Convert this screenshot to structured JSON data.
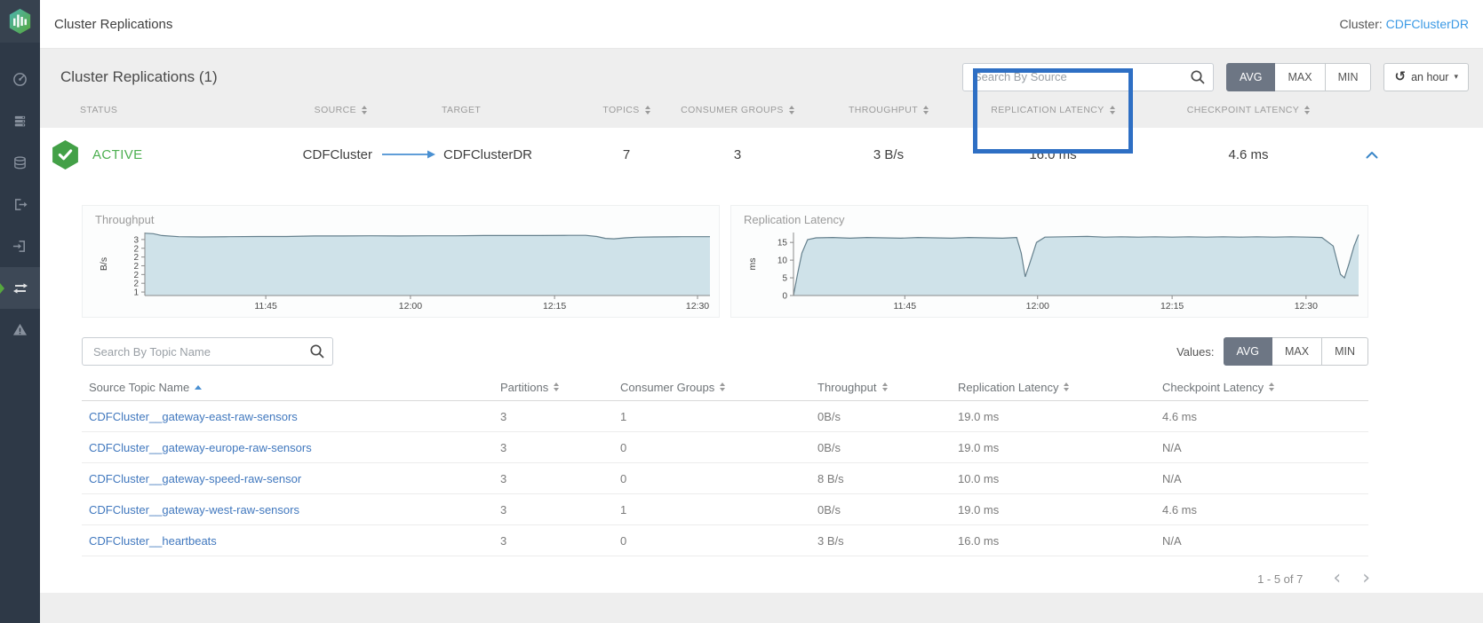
{
  "app": {
    "window_title": "Cluster Replications",
    "cluster_label": "Cluster:",
    "cluster_name": "CDFClusterDR"
  },
  "sidebar": {
    "items": [
      {
        "icon": "gauge-icon",
        "active": false
      },
      {
        "icon": "brokers-icon",
        "active": false
      },
      {
        "icon": "topics-icon",
        "active": false
      },
      {
        "icon": "producers-icon",
        "active": false
      },
      {
        "icon": "consumers-icon",
        "active": false
      },
      {
        "icon": "replications-icon",
        "active": true
      },
      {
        "icon": "alerts-icon",
        "active": false
      }
    ]
  },
  "toolbar": {
    "heading": "Cluster Replications (1)",
    "search_placeholder": "Search By Source",
    "agg_buttons": [
      "AVG",
      "MAX",
      "MIN"
    ],
    "agg_selected": "AVG",
    "time_range": "an hour"
  },
  "cluster_table": {
    "columns": [
      "STATUS",
      "SOURCE",
      "TARGET",
      "TOPICS",
      "CONSUMER GROUPS",
      "THROUGHPUT",
      "REPLICATION LATENCY",
      "CHECKPOINT LATENCY"
    ],
    "row": {
      "status": "ACTIVE",
      "source": "CDFCluster",
      "target": "CDFClusterDR",
      "topics": "7",
      "consumer_groups": "3",
      "throughput": "3 B/s",
      "replication_latency": "16.0 ms",
      "checkpoint_latency": "4.6 ms"
    },
    "highlighted_column": "REPLICATION LATENCY"
  },
  "values_toggle": {
    "label": "Values:",
    "buttons": [
      "AVG",
      "MAX",
      "MIN"
    ],
    "selected": "AVG"
  },
  "topics_table": {
    "search_placeholder": "Search By Topic Name",
    "columns": [
      "Source Topic Name",
      "Partitions",
      "Consumer Groups",
      "Throughput",
      "Replication Latency",
      "Checkpoint Latency"
    ],
    "sorted_by": "Source Topic Name",
    "sort_direction": "asc",
    "rows": [
      {
        "name": "CDFCluster__gateway-east-raw-sensors",
        "partitions": "3",
        "consumer_groups": "1",
        "throughput": "0B/s",
        "replication_latency": "19.0 ms",
        "checkpoint_latency": "4.6 ms"
      },
      {
        "name": "CDFCluster__gateway-europe-raw-sensors",
        "partitions": "3",
        "consumer_groups": "0",
        "throughput": "0B/s",
        "replication_latency": "19.0 ms",
        "checkpoint_latency": "N/A"
      },
      {
        "name": "CDFCluster__gateway-speed-raw-sensor",
        "partitions": "3",
        "consumer_groups": "0",
        "throughput": "8 B/s",
        "replication_latency": "10.0 ms",
        "checkpoint_latency": "N/A"
      },
      {
        "name": "CDFCluster__gateway-west-raw-sensors",
        "partitions": "3",
        "consumer_groups": "1",
        "throughput": "0B/s",
        "replication_latency": "19.0 ms",
        "checkpoint_latency": "4.6 ms"
      },
      {
        "name": "CDFCluster__heartbeats",
        "partitions": "3",
        "consumer_groups": "0",
        "throughput": "3 B/s",
        "replication_latency": "16.0 ms",
        "checkpoint_latency": "N/A"
      }
    ],
    "pagination": "1 - 5 of 7"
  },
  "colors": {
    "highlight_blue": "#2e6fc4",
    "status_green": "#43a047",
    "link_blue": "#4178be",
    "header_link_blue": "#3c9ae5",
    "chart_fill": "#cfe2e9",
    "chart_stroke": "#65808d",
    "sidebar_bg": "#2e3947",
    "selected_button_bg": "#6d7684"
  },
  "chart_data": [
    {
      "type": "area",
      "dom": "throughput-chart",
      "title": "Throughput",
      "ylabel": "B/s",
      "ylim": [
        0.85,
        3.55
      ],
      "yticks": [
        {
          "v": 3.25,
          "label": "3"
        },
        {
          "v": 2.875,
          "label": "2"
        },
        {
          "v": 2.5,
          "label": "2"
        },
        {
          "v": 2.125,
          "label": "2"
        },
        {
          "v": 1.75,
          "label": "2"
        },
        {
          "v": 1.375,
          "label": "2"
        },
        {
          "v": 1.0,
          "label": "1"
        }
      ],
      "xticks": [
        {
          "label": "11:45",
          "pos": 21.4
        },
        {
          "label": "12:00",
          "pos": 47.0
        },
        {
          "label": "12:15",
          "pos": 72.5
        },
        {
          "label": "12:30",
          "pos": 97.8
        }
      ],
      "fill": "#cfe2e9",
      "stroke": "#65808d",
      "points": [
        [
          0,
          3.52
        ],
        [
          1.5,
          3.5
        ],
        [
          3,
          3.42
        ],
        [
          6,
          3.37
        ],
        [
          10,
          3.36
        ],
        [
          15,
          3.37
        ],
        [
          20,
          3.38
        ],
        [
          25,
          3.38
        ],
        [
          30,
          3.4
        ],
        [
          35,
          3.4
        ],
        [
          40,
          3.41
        ],
        [
          45,
          3.4
        ],
        [
          50,
          3.41
        ],
        [
          55,
          3.41
        ],
        [
          60,
          3.42
        ],
        [
          65,
          3.42
        ],
        [
          70,
          3.42
        ],
        [
          75,
          3.43
        ],
        [
          78,
          3.43
        ],
        [
          80,
          3.38
        ],
        [
          81.5,
          3.3
        ],
        [
          83,
          3.28
        ],
        [
          85,
          3.32
        ],
        [
          87,
          3.35
        ],
        [
          90,
          3.36
        ],
        [
          95,
          3.37
        ],
        [
          100,
          3.37
        ]
      ]
    },
    {
      "type": "area",
      "dom": "latency-chart",
      "title": "Replication Latency",
      "ylabel": "ms",
      "ylim": [
        0,
        17.8
      ],
      "yticks": [
        {
          "v": 15,
          "label": "15"
        },
        {
          "v": 10,
          "label": "10"
        },
        {
          "v": 5,
          "label": "5"
        },
        {
          "v": 0,
          "label": "0"
        }
      ],
      "xticks": [
        {
          "label": "11:45",
          "pos": 19.7
        },
        {
          "label": "12:00",
          "pos": 43.2
        },
        {
          "label": "12:15",
          "pos": 67.0
        },
        {
          "label": "12:30",
          "pos": 90.7
        }
      ],
      "fill": "#cfe2e9",
      "stroke": "#65808d",
      "points": [
        [
          0,
          0
        ],
        [
          0.7,
          6
        ],
        [
          1.5,
          12
        ],
        [
          2.5,
          15.8
        ],
        [
          4,
          16.3
        ],
        [
          7,
          16.4
        ],
        [
          10,
          16.2
        ],
        [
          13,
          16.4
        ],
        [
          16,
          16.3
        ],
        [
          19,
          16.2
        ],
        [
          22,
          16.4
        ],
        [
          25,
          16.3
        ],
        [
          28,
          16.2
        ],
        [
          31,
          16.4
        ],
        [
          34,
          16.3
        ],
        [
          37,
          16.2
        ],
        [
          39.5,
          16.4
        ],
        [
          40.3,
          12
        ],
        [
          41,
          5.3
        ],
        [
          41.8,
          9
        ],
        [
          43,
          15
        ],
        [
          44.5,
          16.5
        ],
        [
          48,
          16.6
        ],
        [
          52,
          16.7
        ],
        [
          55,
          16.5
        ],
        [
          58,
          16.6
        ],
        [
          61,
          16.5
        ],
        [
          64,
          16.6
        ],
        [
          67,
          16.5
        ],
        [
          70,
          16.6
        ],
        [
          73,
          16.5
        ],
        [
          76,
          16.6
        ],
        [
          79,
          16.5
        ],
        [
          82,
          16.6
        ],
        [
          85,
          16.5
        ],
        [
          88,
          16.6
        ],
        [
          91,
          16.5
        ],
        [
          93.5,
          16.4
        ],
        [
          95.5,
          14
        ],
        [
          96.8,
          6
        ],
        [
          97.5,
          5
        ],
        [
          98.3,
          9
        ],
        [
          99.2,
          14
        ],
        [
          100,
          17.2
        ]
      ]
    }
  ]
}
